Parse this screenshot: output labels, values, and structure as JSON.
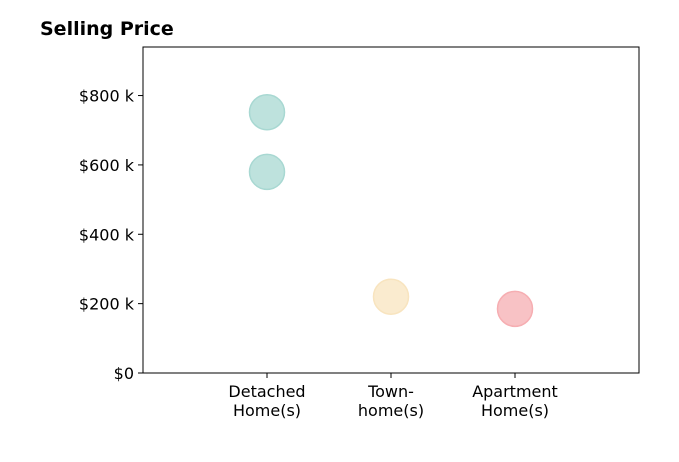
{
  "chart_data": {
    "type": "scatter",
    "title": "Selling Price",
    "xlabel": "",
    "ylabel": "",
    "categories": [
      [
        "Detached",
        "Home(s)"
      ],
      [
        "Town-",
        "home(s)"
      ],
      [
        "Apartment",
        "Home(s)"
      ]
    ],
    "x_range": [
      -1,
      3
    ],
    "ylim": [
      0,
      940
    ],
    "y_ticks": [
      {
        "value": 0,
        "label": "$0"
      },
      {
        "value": 200,
        "label": "$200 k"
      },
      {
        "value": 400,
        "label": "$400 k"
      },
      {
        "value": 600,
        "label": "$600 k"
      },
      {
        "value": 800,
        "label": "$800 k"
      }
    ],
    "points": [
      {
        "category": 0,
        "y": 752,
        "color": "#a8d8d2"
      },
      {
        "category": 0,
        "y": 580,
        "color": "#a8d8d2"
      },
      {
        "category": 1,
        "y": 220,
        "color": "#f8e4bf"
      },
      {
        "category": 2,
        "y": 185,
        "color": "#f6aeb2"
      }
    ],
    "grid": false,
    "legend": "none"
  }
}
